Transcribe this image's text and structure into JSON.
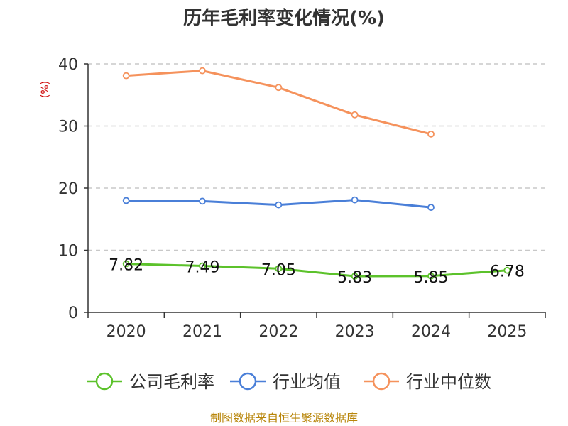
{
  "chart_data": {
    "type": "line",
    "title": "历年毛利率变化情况(%)",
    "ylabel": "(%)",
    "xlabel": "",
    "categories": [
      "2020",
      "2021",
      "2022",
      "2023",
      "2024",
      "2025"
    ],
    "ylim": [
      0,
      40
    ],
    "yticks": [
      "0",
      "10",
      "20",
      "30",
      "40"
    ],
    "grid": true,
    "legend_position": "bottom",
    "series": [
      {
        "name": "公司毛利率",
        "color": "#5cc22b",
        "values": [
          7.82,
          7.49,
          7.05,
          5.83,
          5.85,
          6.78
        ],
        "labels": [
          "7.82",
          "7.49",
          "7.05",
          "5.83",
          "5.85",
          "6.78"
        ]
      },
      {
        "name": "行业均值",
        "color": "#4a7fd8",
        "values": [
          18.0,
          17.9,
          17.3,
          18.1,
          16.9,
          null
        ]
      },
      {
        "name": "行业中位数",
        "color": "#f5925c",
        "values": [
          38.1,
          38.9,
          36.2,
          31.8,
          28.7,
          null
        ]
      }
    ],
    "source": "制图数据来自恒生聚源数据库"
  }
}
